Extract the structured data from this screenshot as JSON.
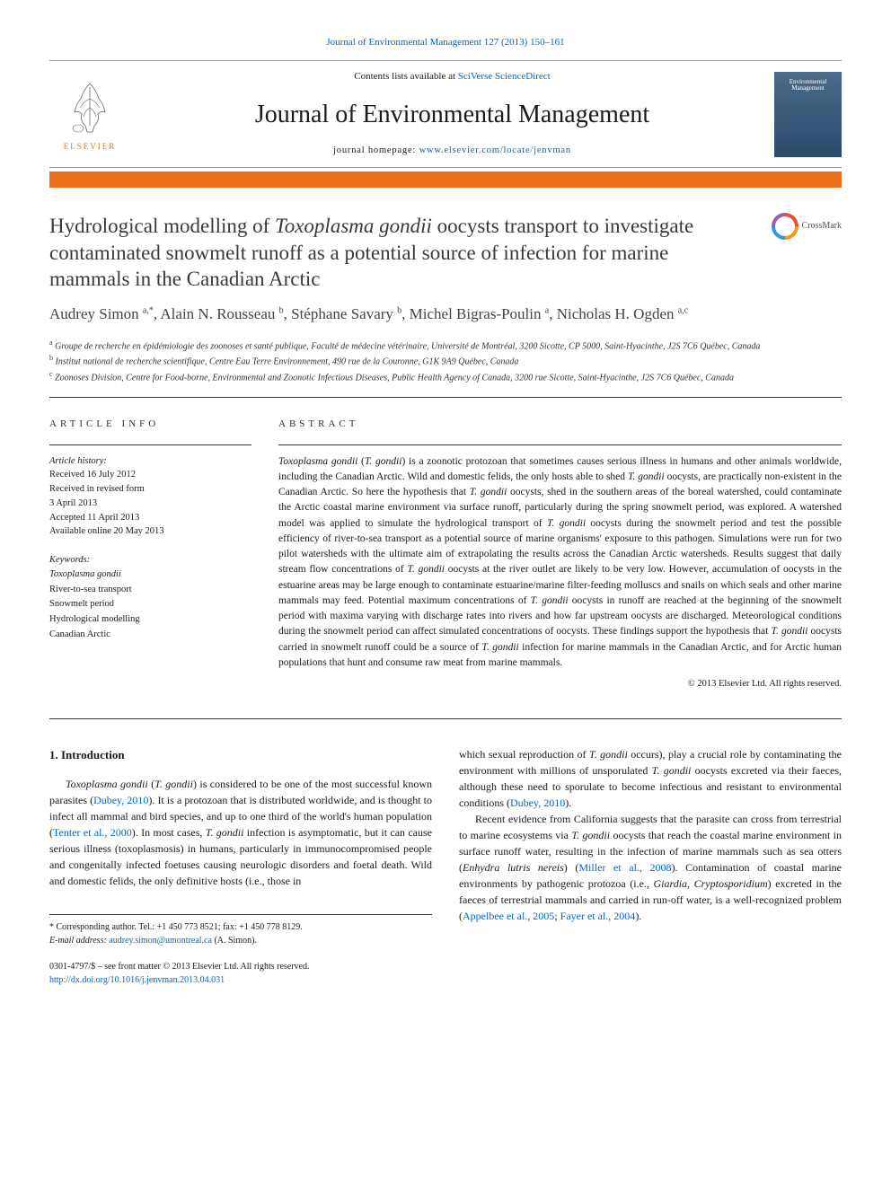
{
  "colors": {
    "link": "#0066cc",
    "accent": "#E9711C",
    "text": "#1a1a1a",
    "heading": "#3a3a3a"
  },
  "top_citation": "Journal of Environmental Management 127 (2013) 150–161",
  "masthead": {
    "contents_prefix": "Contents lists available at ",
    "contents_link": "SciVerse ScienceDirect",
    "journal": "Journal of Environmental Management",
    "homepage_prefix": "journal homepage: ",
    "homepage_url": "www.elsevier.com/locate/jenvman",
    "publisher": "ELSEVIER",
    "cover_label": "Environmental Management"
  },
  "title_parts": {
    "pre": "Hydrological modelling of ",
    "ital": "Toxoplasma gondii",
    "post": " oocysts transport to investigate contaminated snowmelt runoff as a potential source of infection for marine mammals in the Canadian Arctic"
  },
  "crossmark": "CrossMark",
  "authors_html": "Audrey Simon <sup>a,*</sup>, Alain N. Rousseau <sup>b</sup>, Stéphane Savary <sup>b</sup>, Michel Bigras-Poulin <sup>a</sup>, Nicholas H. Ogden <sup>a,c</sup>",
  "affiliations": [
    {
      "sup": "a",
      "text": "Groupe de recherche en épidémiologie des zoonoses et santé publique, Faculté de médecine vétérinaire, Université de Montréal, 3200 Sicotte, CP 5000, Saint-Hyacinthe, J2S 7C6 Québec, Canada"
    },
    {
      "sup": "b",
      "text": "Institut national de recherche scientifique, Centre Eau Terre Environnement, 490 rue de la Couronne, G1K 9A9 Québec, Canada"
    },
    {
      "sup": "c",
      "text": "Zoonoses Division, Centre for Food-borne, Environmental and Zoonotic Infectious Diseases, Public Health Agency of Canada, 3200 rue Sicotte, Saint-Hyacinthe, J2S 7C6 Québec, Canada"
    }
  ],
  "article_info": {
    "head": "ARTICLE INFO",
    "history_label": "Article history:",
    "lines": [
      "Received 16 July 2012",
      "Received in revised form",
      "3 April 2013",
      "Accepted 11 April 2013",
      "Available online 20 May 2013"
    ],
    "keywords_label": "Keywords:",
    "keywords": [
      {
        "text": "Toxoplasma gondii",
        "ital": true
      },
      {
        "text": "River-to-sea transport",
        "ital": false
      },
      {
        "text": "Snowmelt period",
        "ital": false
      },
      {
        "text": "Hydrological modelling",
        "ital": false
      },
      {
        "text": "Canadian Arctic",
        "ital": false
      }
    ]
  },
  "abstract": {
    "head": "ABSTRACT",
    "text_html": "<span class=\"ital\">Toxoplasma gondii</span> (<span class=\"ital\">T. gondii</span>) is a zoonotic protozoan that sometimes causes serious illness in humans and other animals worldwide, including the Canadian Arctic. Wild and domestic felids, the only hosts able to shed <span class=\"ital\">T. gondii</span> oocysts, are practically non-existent in the Canadian Arctic. So here the hypothesis that <span class=\"ital\">T. gondii</span> oocysts, shed in the southern areas of the boreal watershed, could contaminate the Arctic coastal marine environment via surface runoff, particularly during the spring snowmelt period, was explored. A watershed model was applied to simulate the hydrological transport of <span class=\"ital\">T. gondii</span> oocysts during the snowmelt period and test the possible efficiency of river-to-sea transport as a potential source of marine organisms' exposure to this pathogen. Simulations were run for two pilot watersheds with the ultimate aim of extrapolating the results across the Canadian Arctic watersheds. Results suggest that daily stream flow concentrations of <span class=\"ital\">T. gondii</span> oocysts at the river outlet are likely to be very low. However, accumulation of oocysts in the estuarine areas may be large enough to contaminate estuarine/marine filter-feeding molluscs and snails on which seals and other marine mammals may feed. Potential maximum concentrations of <span class=\"ital\">T. gondii</span> oocysts in runoff are reached at the beginning of the snowmelt period with maxima varying with discharge rates into rivers and how far upstream oocysts are discharged. Meteorological conditions during the snowmelt period can affect simulated concentrations of oocysts. These findings support the hypothesis that <span class=\"ital\">T. gondii</span> oocysts carried in snowmelt runoff could be a source of <span class=\"ital\">T. gondii</span> infection for marine mammals in the Canadian Arctic, and for Arctic human populations that hunt and consume raw meat from marine mammals.",
    "copyright": "© 2013 Elsevier Ltd. All rights reserved."
  },
  "intro": {
    "head": "1. Introduction",
    "col1_html": "<span class=\"ital\">Toxoplasma gondii</span> (<span class=\"ital\">T. gondii</span>) is considered to be one of the most successful known parasites (<a href=\"#\">Dubey, 2010</a>). It is a protozoan that is distributed worldwide, and is thought to infect all mammal and bird species, and up to one third of the world's human population (<a href=\"#\">Tenter et al., 2000</a>). In most cases, <span class=\"ital\">T. gondii</span> infection is asymptomatic, but it can cause serious illness (toxoplasmosis) in humans, particularly in immunocompromised people and congenitally infected foetuses causing neurologic disorders and foetal death. Wild and domestic felids, the only definitive hosts (i.e., those in",
    "col2_p1_html": "which sexual reproduction of <span class=\"ital\">T. gondii</span> occurs), play a crucial role by contaminating the environment with millions of unsporulated <span class=\"ital\">T. gondii</span> oocysts excreted via their faeces, although these need to sporulate to become infectious and resistant to environmental conditions (<a href=\"#\">Dubey, 2010</a>).",
    "col2_p2_html": "Recent evidence from California suggests that the parasite can cross from terrestrial to marine ecosystems via <span class=\"ital\">T. gondii</span> oocysts that reach the coastal marine environment in surface runoff water, resulting in the infection of marine mammals such as sea otters (<span class=\"ital\">Enhydra lutris nereis</span>) (<a href=\"#\">Miller et al., 2008</a>). Contamination of coastal marine environments by pathogenic protozoa (i.e., <span class=\"ital\">Giardia, Cryptosporidium</span>) excreted in the faeces of terrestrial mammals and carried in run-off water, is a well-recognized problem (<a href=\"#\">Appelbee et al., 2005</a>; <a href=\"#\">Fayer et al., 2004</a>)."
  },
  "corresponding": {
    "line1": "* Corresponding author. Tel.: +1 450 773 8521; fax: +1 450 778 8129.",
    "email_label": "E-mail address: ",
    "email": "audrey.simon@umontreal.ca",
    "email_suffix": " (A. Simon)."
  },
  "doi": {
    "line1": "0301-4797/$ – see front matter © 2013 Elsevier Ltd. All rights reserved.",
    "link": "http://dx.doi.org/10.1016/j.jenvman.2013.04.031"
  }
}
